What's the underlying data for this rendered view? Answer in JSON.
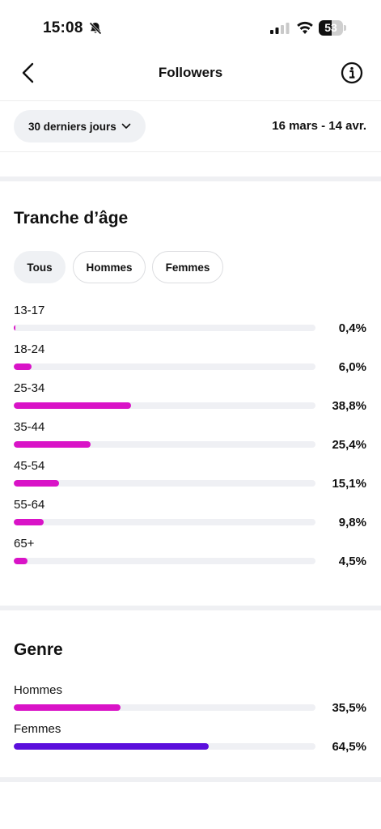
{
  "status": {
    "time": "15:08",
    "battery_label": "53",
    "battery_level": 0.53,
    "icons": [
      "bell-slash-icon",
      "signal-icon",
      "wifi-icon",
      "battery-icon"
    ]
  },
  "nav": {
    "title": "Followers",
    "back_icon": "chevron-left-icon",
    "info_icon": "info-circle-icon"
  },
  "period": {
    "label": "30 derniers jours",
    "icon": "chevron-down-icon",
    "date_range": "16 mars - 14 avr."
  },
  "age": {
    "title": "Tranche d’âge",
    "filters": [
      {
        "label": "Tous",
        "active": true
      },
      {
        "label": "Hommes",
        "active": false
      },
      {
        "label": "Femmes",
        "active": false
      }
    ],
    "bar_color": "#d913c7",
    "rows": [
      {
        "label": "13-17",
        "value_text": "0,4%",
        "value": 0.4
      },
      {
        "label": "18-24",
        "value_text": "6,0%",
        "value": 6.0
      },
      {
        "label": "25-34",
        "value_text": "38,8%",
        "value": 38.8
      },
      {
        "label": "35-44",
        "value_text": "25,4%",
        "value": 25.4
      },
      {
        "label": "45-54",
        "value_text": "15,1%",
        "value": 15.1
      },
      {
        "label": "55-64",
        "value_text": "9,8%",
        "value": 9.8
      },
      {
        "label": "65+",
        "value_text": "4,5%",
        "value": 4.5
      }
    ]
  },
  "gender": {
    "title": "Genre",
    "rows": [
      {
        "label": "Hommes",
        "value_text": "35,5%",
        "value": 35.5,
        "color": "#d913c7"
      },
      {
        "label": "Femmes",
        "value_text": "64,5%",
        "value": 64.5,
        "color": "#5b0fdc"
      }
    ]
  }
}
